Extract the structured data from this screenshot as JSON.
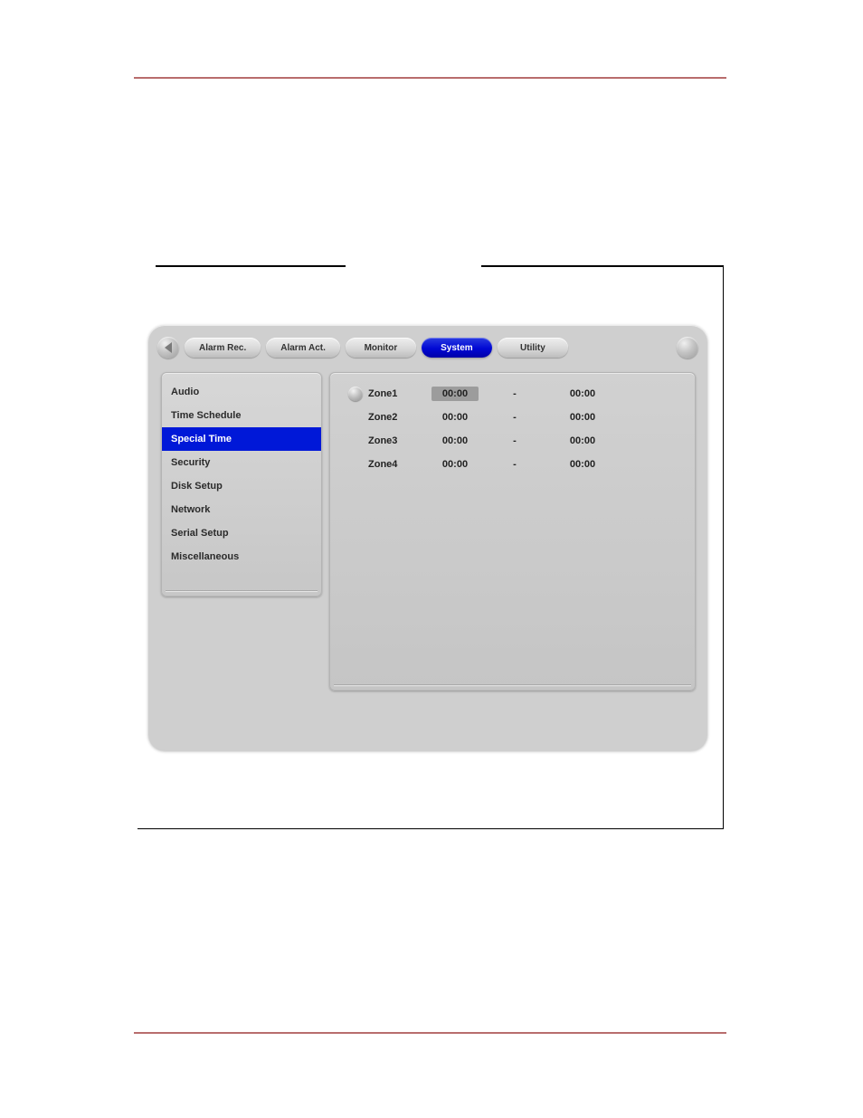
{
  "colors": {
    "page_bg": "#ffffff",
    "rule": "#b86d6d",
    "panel_bg": "#cfcfcf",
    "tab_inactive_text": "#333333",
    "tab_active_bg": "#0018d8",
    "tab_active_text": "#ffffff",
    "sidebar_text": "#2b2b2b",
    "sidebar_selected_bg": "#0018d8",
    "sidebar_selected_text": "#ffffff",
    "time_selected_bg": "#9c9c9c"
  },
  "tabs": [
    {
      "label": "Alarm Rec.",
      "active": false
    },
    {
      "label": "Alarm Act.",
      "active": false
    },
    {
      "label": "Monitor",
      "active": false
    },
    {
      "label": "System",
      "active": true
    },
    {
      "label": "Utility",
      "active": false
    }
  ],
  "sidebar": {
    "items": [
      {
        "label": "Audio",
        "selected": false
      },
      {
        "label": "Time Schedule",
        "selected": false
      },
      {
        "label": "Special Time",
        "selected": true
      },
      {
        "label": "Security",
        "selected": false
      },
      {
        "label": "Disk Setup",
        "selected": false
      },
      {
        "label": "Network",
        "selected": false
      },
      {
        "label": "Serial Setup",
        "selected": false
      },
      {
        "label": "Miscellaneous",
        "selected": false
      }
    ]
  },
  "zones": [
    {
      "radio": true,
      "label": "Zone1",
      "start": "00:00",
      "start_selected": true,
      "sep": "-",
      "end": "00:00"
    },
    {
      "radio": false,
      "label": "Zone2",
      "start": "00:00",
      "start_selected": false,
      "sep": "-",
      "end": "00:00"
    },
    {
      "radio": false,
      "label": "Zone3",
      "start": "00:00",
      "start_selected": false,
      "sep": "-",
      "end": "00:00"
    },
    {
      "radio": false,
      "label": "Zone4",
      "start": "00:00",
      "start_selected": false,
      "sep": "-",
      "end": "00:00"
    }
  ]
}
